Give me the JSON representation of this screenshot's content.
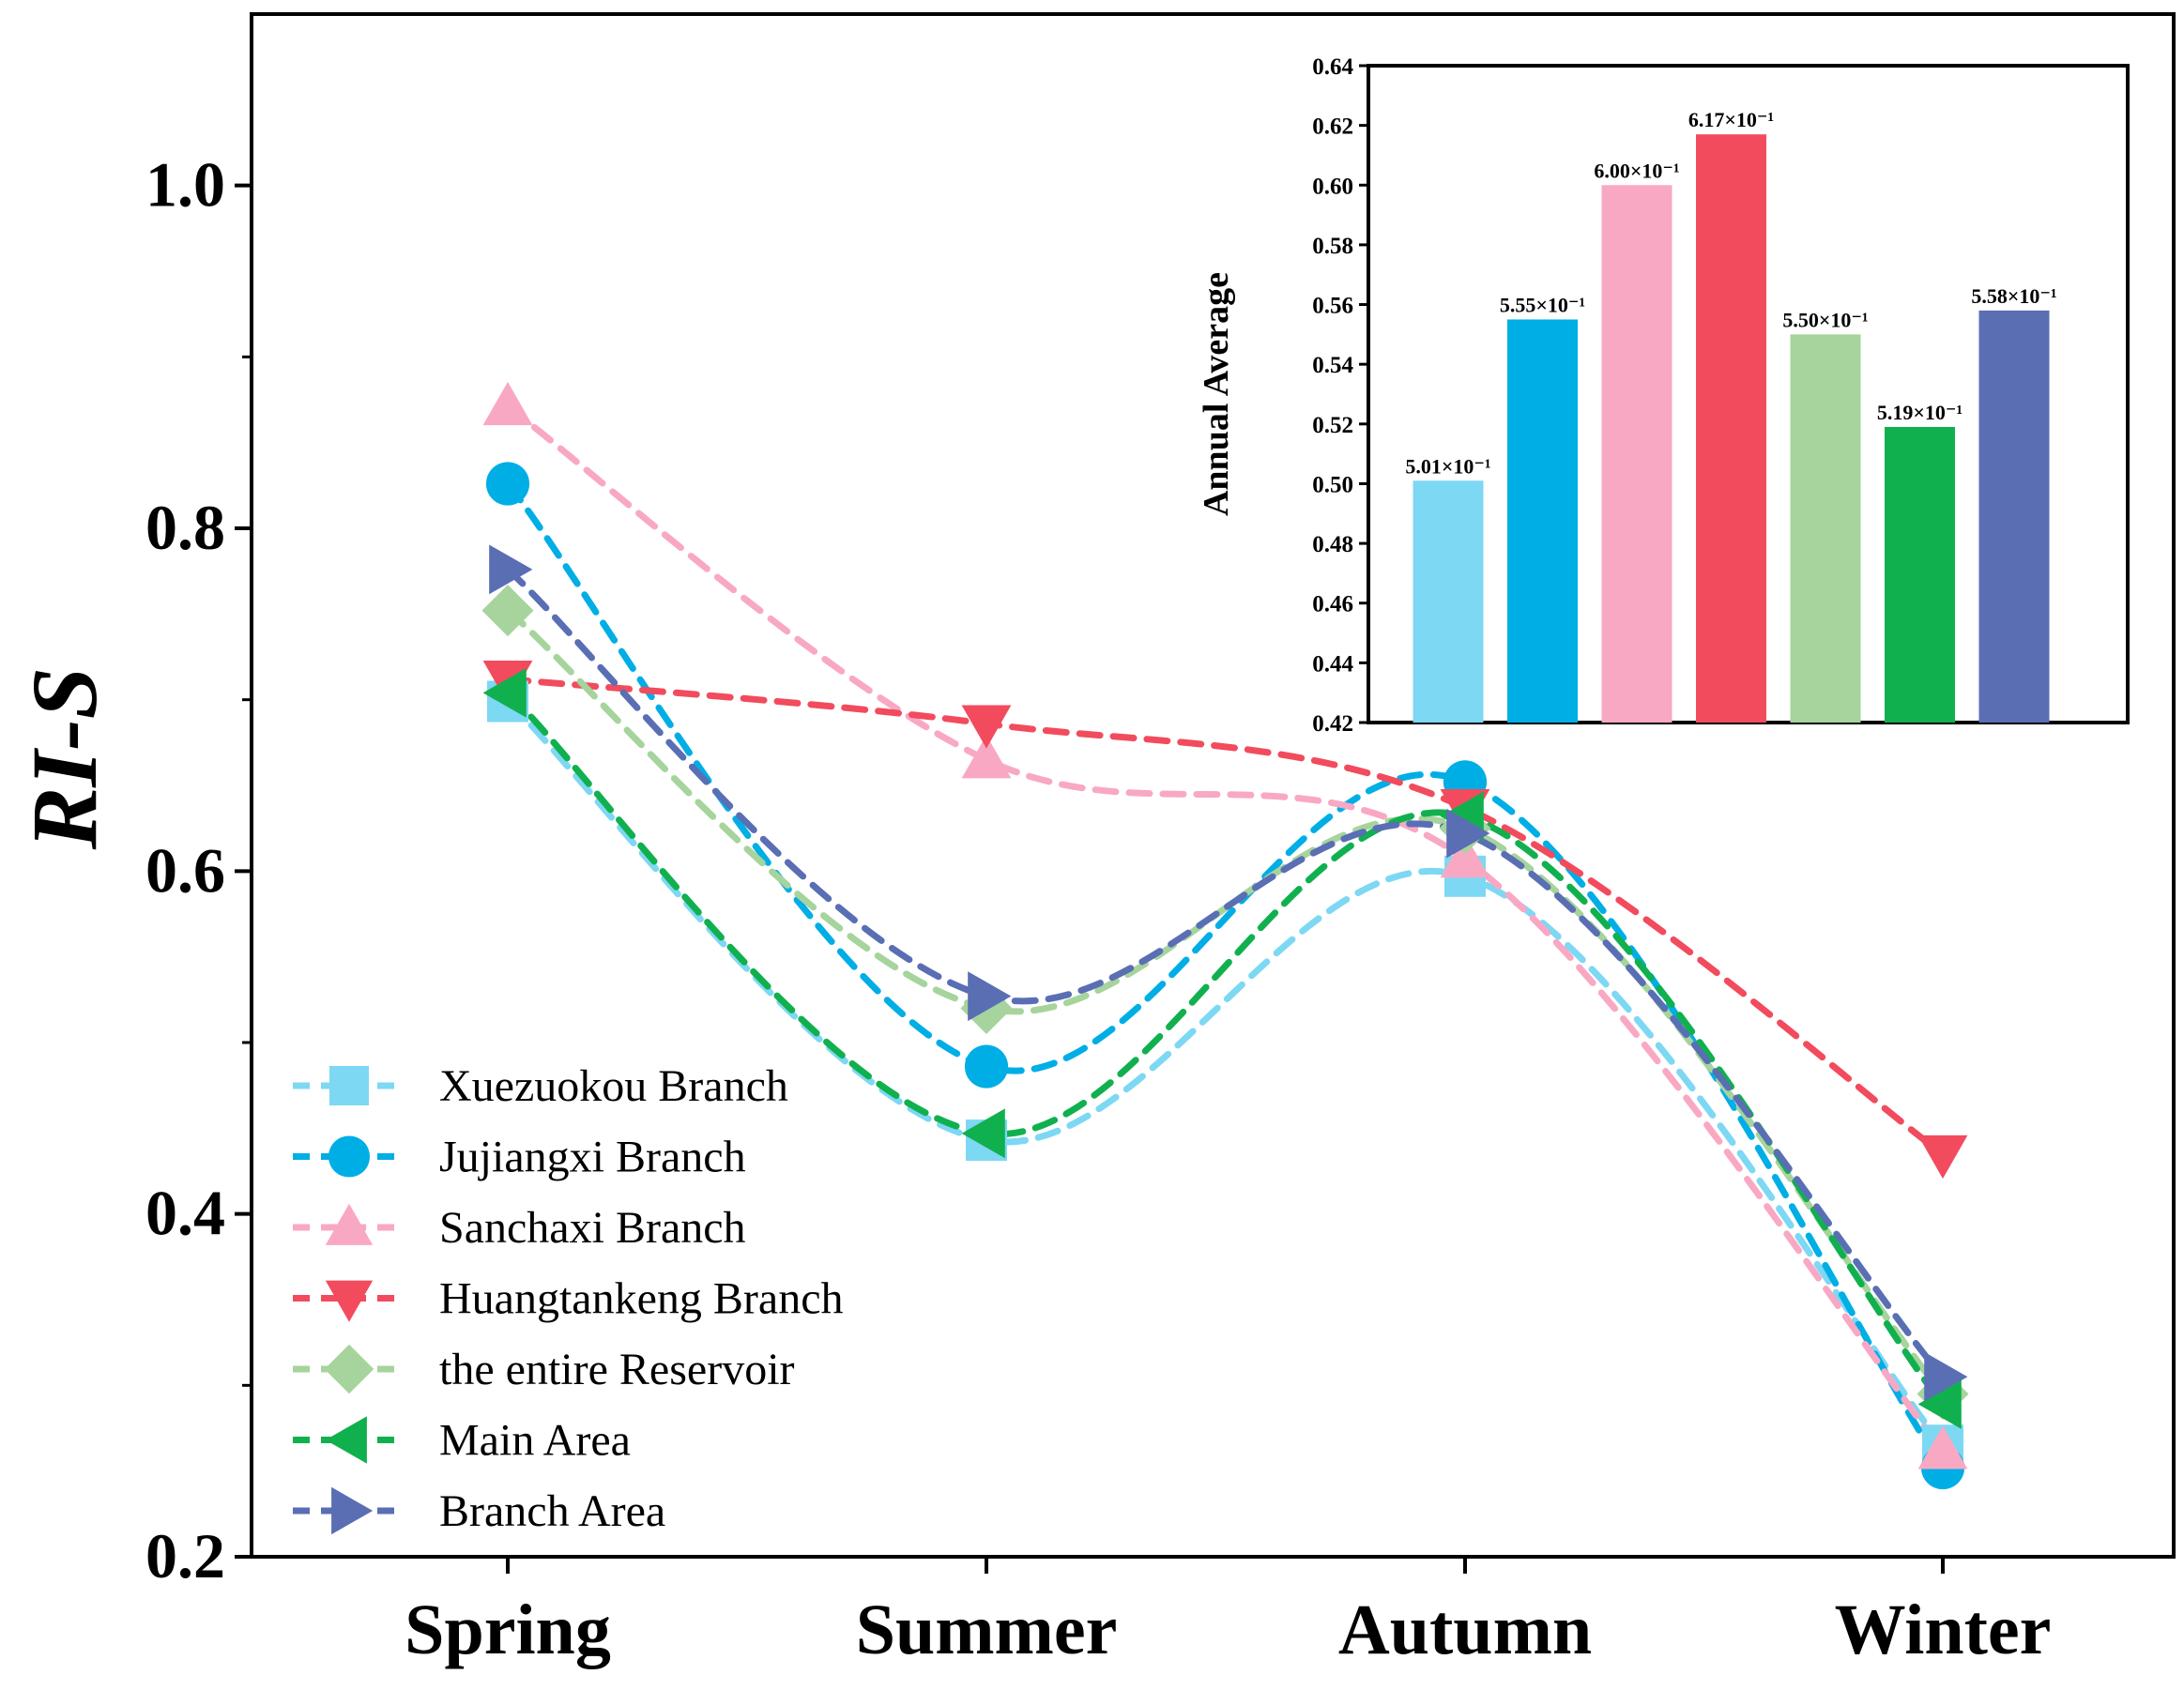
{
  "chart_data": {
    "main": {
      "type": "line",
      "ylabel": "RI-S",
      "xlabel": "",
      "categories": [
        "Spring",
        "Summer",
        "Autumn",
        "Winter"
      ],
      "ylim": [
        0.2,
        1.1
      ],
      "yticks": [
        "0.2",
        "0.4",
        "0.6",
        "0.8",
        "1.0"
      ],
      "ytick_values": [
        0.2,
        0.4,
        0.6,
        0.8,
        1.0
      ],
      "legend_position": "lower-left",
      "series": [
        {
          "name": "Xuezuokou Branch",
          "values": [
            0.699,
            0.443,
            0.597,
            0.265
          ],
          "color": "#7dd8f3",
          "marker": "square"
        },
        {
          "name": "Jujiangxi Branch",
          "values": [
            0.826,
            0.486,
            0.652,
            0.252
          ],
          "color": "#00aee6",
          "marker": "circle"
        },
        {
          "name": "Sanchaxi Branch",
          "values": [
            0.871,
            0.665,
            0.607,
            0.262
          ],
          "color": "#f9a8c4",
          "marker": "triangle-up"
        },
        {
          "name": "Huangtankeng Branch",
          "values": [
            0.712,
            0.686,
            0.637,
            0.435
          ],
          "color": "#f24b5d",
          "marker": "triangle-down"
        },
        {
          "name": "the entire Reservoir",
          "values": [
            0.752,
            0.52,
            0.625,
            0.295
          ],
          "color": "#a6d49c",
          "marker": "diamond"
        },
        {
          "name": "Main Area",
          "values": [
            0.704,
            0.447,
            0.632,
            0.289
          ],
          "color": "#11b04f",
          "marker": "triangle-left"
        },
        {
          "name": "Branch Area",
          "values": [
            0.776,
            0.527,
            0.622,
            0.305
          ],
          "color": "#5a6eb4",
          "marker": "triangle-right"
        }
      ]
    },
    "inset": {
      "type": "bar",
      "ylabel": "Annual Average",
      "ylim": [
        0.42,
        0.64
      ],
      "yticks": [
        "0.42",
        "0.44",
        "0.46",
        "0.48",
        "0.50",
        "0.52",
        "0.54",
        "0.56",
        "0.58",
        "0.60",
        "0.62",
        "0.64"
      ],
      "ytick_values": [
        0.42,
        0.44,
        0.46,
        0.48,
        0.5,
        0.52,
        0.54,
        0.56,
        0.58,
        0.6,
        0.62,
        0.64
      ],
      "values": [
        0.501,
        0.555,
        0.6,
        0.617,
        0.55,
        0.519,
        0.558
      ],
      "labels": [
        "5.01×10⁻¹",
        "5.55×10⁻¹",
        "6.00×10⁻¹",
        "6.17×10⁻¹",
        "5.50×10⁻¹",
        "5.19×10⁻¹",
        "5.58×10⁻¹"
      ],
      "colors": [
        "#7dd8f3",
        "#00aee6",
        "#f9a8c4",
        "#f24b5d",
        "#a6d49c",
        "#11b04f",
        "#5a6eb4"
      ]
    }
  }
}
